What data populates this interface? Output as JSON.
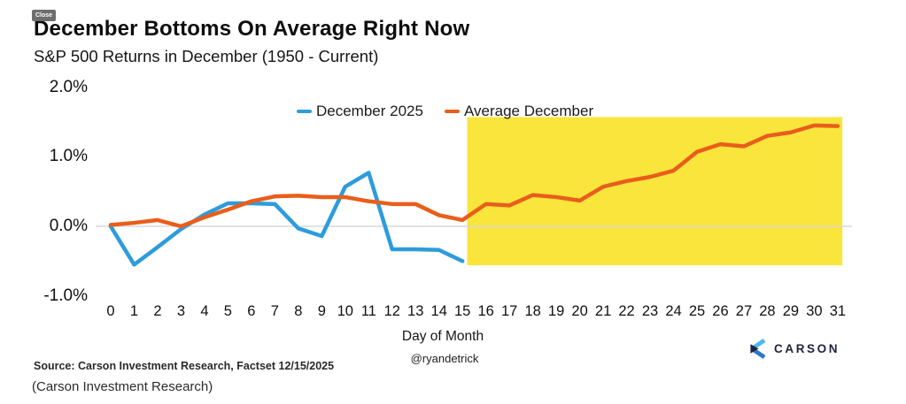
{
  "page": {
    "caption": "(Carson Investment Research)"
  },
  "header": {
    "close_label": "Close",
    "title": "December Bottoms On Average Right Now",
    "subtitle": "S&P 500 Returns in December (1950 - Current)"
  },
  "footer": {
    "source": "Source: Carson Investment Research, Factset 12/15/2025",
    "handle": "@ryandetrick",
    "xlabel": "Day of Month",
    "logo_text": "CARSON"
  },
  "colors": {
    "line_blue": "#2D9CDB",
    "line_orange": "#E95E1B",
    "highlight_yellow": "#FAE53C",
    "gridline": "#D8D8D8",
    "logo_navy": "#1B2340",
    "logo_light_blue": "#4FB8E8",
    "logo_mid_blue": "#2D78C9"
  },
  "chart_data": {
    "type": "line",
    "title": "December Bottoms On Average Right Now",
    "subtitle": "S&P 500 Returns in December (1950 - Current)",
    "xlabel": "Day of Month",
    "ylabel": "",
    "grid": "zero-line-only",
    "legend_position": "top-center",
    "ylim": [
      -1.3,
      2.2
    ],
    "y_ticks": [
      {
        "label": "2.0%",
        "value": 2.0
      },
      {
        "label": "1.0%",
        "value": 1.0
      },
      {
        "label": "0.0%",
        "value": 0.0
      },
      {
        "label": "-1.0%",
        "value": -1.0
      }
    ],
    "x_ticks": [
      0,
      1,
      2,
      3,
      4,
      5,
      6,
      7,
      8,
      9,
      10,
      11,
      12,
      13,
      14,
      15,
      16,
      17,
      18,
      19,
      20,
      21,
      22,
      23,
      24,
      25,
      26,
      27,
      28,
      29,
      30,
      31
    ],
    "series": [
      {
        "name": "December 2025",
        "color": "#2D9CDB",
        "x": [
          0,
          1,
          2,
          3,
          4,
          5,
          6,
          7,
          8,
          9,
          10,
          11,
          12,
          13,
          14,
          15
        ],
        "values": [
          0.0,
          -0.55,
          -0.3,
          -0.04,
          0.17,
          0.33,
          0.33,
          0.32,
          -0.03,
          -0.14,
          0.57,
          0.77,
          -0.33,
          -0.33,
          -0.34,
          -0.5
        ]
      },
      {
        "name": "Average December",
        "color": "#E95E1B",
        "x": [
          0,
          1,
          2,
          3,
          4,
          5,
          6,
          7,
          8,
          9,
          10,
          11,
          12,
          13,
          14,
          15,
          16,
          17,
          18,
          19,
          20,
          21,
          22,
          23,
          24,
          25,
          26,
          27,
          28,
          29,
          30,
          31
        ],
        "values": [
          0.02,
          0.05,
          0.09,
          0.0,
          0.13,
          0.24,
          0.36,
          0.43,
          0.44,
          0.42,
          0.42,
          0.36,
          0.32,
          0.32,
          0.16,
          0.09,
          0.32,
          0.3,
          0.45,
          0.42,
          0.37,
          0.57,
          0.65,
          0.71,
          0.8,
          1.07,
          1.18,
          1.15,
          1.3,
          1.35,
          1.45,
          1.44
        ]
      }
    ],
    "highlight_region": {
      "x_start": 15.2,
      "x_end": 31.2,
      "y_bottom": -0.56,
      "y_top": 1.57,
      "color": "#FAE53C"
    }
  }
}
